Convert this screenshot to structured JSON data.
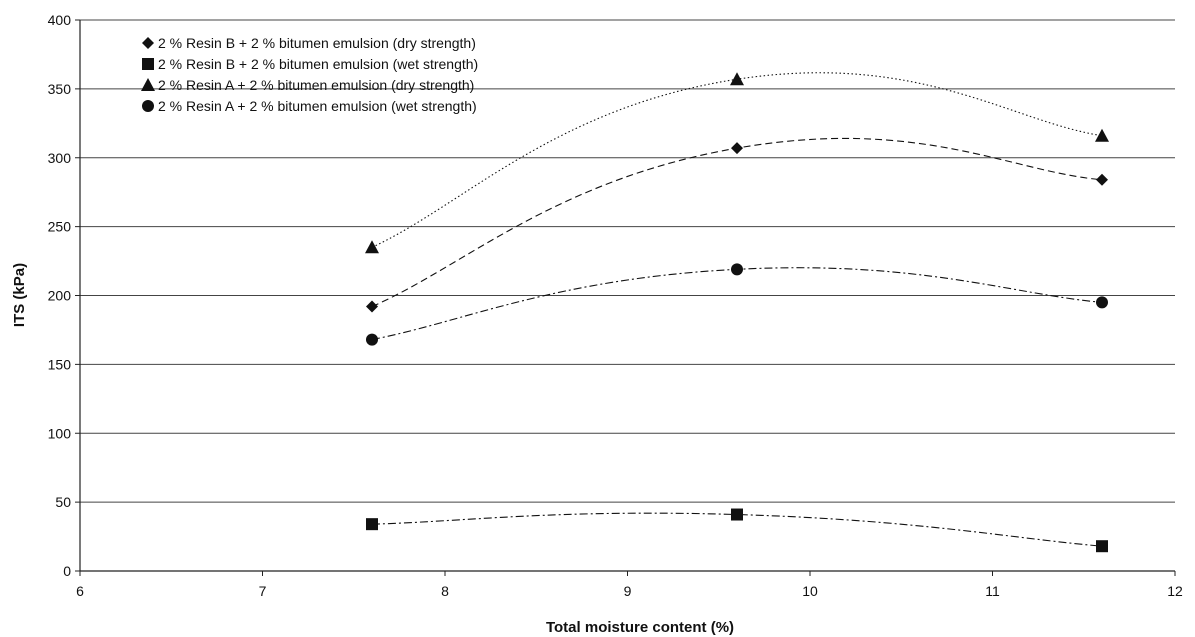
{
  "chart_data": {
    "type": "scatter",
    "title": "",
    "xlabel": "Total moisture content (%)",
    "ylabel": "ITS (kPa)",
    "xlim": [
      6,
      12
    ],
    "ylim": [
      0,
      400
    ],
    "xticks": [
      "6",
      "7",
      "8",
      "9",
      "10",
      "11",
      "12"
    ],
    "yticks": [
      "0",
      "50",
      "100",
      "150",
      "200",
      "250",
      "300",
      "350",
      "400"
    ],
    "grid": "horizontal",
    "legend_position": "top-left",
    "series": [
      {
        "name": "2 % Resin B + 2 % bitumen emulsion (dry strength)",
        "marker": "diamond",
        "line_style": "dashed",
        "x": [
          7.6,
          9.6,
          11.6
        ],
        "y": [
          192,
          307,
          284
        ]
      },
      {
        "name": "2 % Resin B + 2 % bitumen emulsion (wet strength)",
        "marker": "square",
        "line_style": "dashdot",
        "x": [
          7.6,
          9.6,
          11.6
        ],
        "y": [
          34,
          41,
          18
        ]
      },
      {
        "name": "2 % Resin A + 2 % bitumen emulsion (dry strength)",
        "marker": "triangle",
        "line_style": "dotted",
        "x": [
          7.6,
          9.6,
          11.6
        ],
        "y": [
          235,
          357,
          316
        ]
      },
      {
        "name": "2 % Resin A + 2 % bitumen emulsion (wet strength)",
        "marker": "circle",
        "line_style": "dashdot",
        "x": [
          7.6,
          9.6,
          11.6
        ],
        "y": [
          168,
          219,
          195
        ]
      }
    ],
    "colors": {
      "marker": "#111111",
      "gridline": "#444444",
      "axis": "#222222",
      "background": "#ffffff"
    }
  }
}
